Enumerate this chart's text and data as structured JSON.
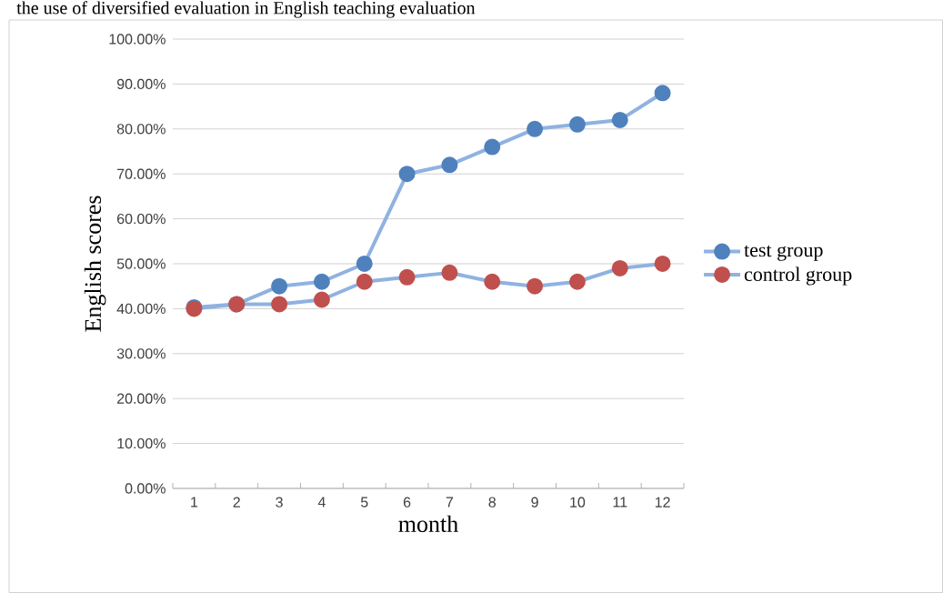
{
  "chart_data": {
    "type": "line",
    "annotations": [
      "the use of diversified evaluation in English teaching evaluation"
    ],
    "xlabel": "month",
    "ylabel": "English scores",
    "categories": [
      "1",
      "2",
      "3",
      "4",
      "5",
      "6",
      "7",
      "8",
      "9",
      "10",
      "11",
      "12"
    ],
    "series": [
      {
        "name": "test group",
        "color": "#4f81bd",
        "values": [
          40.3,
          41,
          45,
          46,
          50,
          70,
          72,
          76,
          80,
          81,
          82,
          88
        ]
      },
      {
        "name": "control group",
        "color": "#c0504d",
        "values": [
          40,
          41,
          41,
          42,
          46,
          47,
          48,
          46,
          45,
          46,
          49,
          50
        ]
      }
    ],
    "ylim": [
      0,
      100
    ],
    "yticks": [
      {
        "value": 0,
        "label": "0.00%"
      },
      {
        "value": 10,
        "label": "10.00%"
      },
      {
        "value": 20,
        "label": "20.00%"
      },
      {
        "value": 30,
        "label": "30.00%"
      },
      {
        "value": 40,
        "label": "40.00%"
      },
      {
        "value": 50,
        "label": "50.00%"
      },
      {
        "value": 60,
        "label": "60.00%"
      },
      {
        "value": 70,
        "label": "70.00%"
      },
      {
        "value": 80,
        "label": "80.00%"
      },
      {
        "value": 90,
        "label": "90.00%"
      },
      {
        "value": 100,
        "label": "100.00%"
      }
    ],
    "grid": "y",
    "legend": "right",
    "marker": "circle",
    "line_style": "solid"
  }
}
